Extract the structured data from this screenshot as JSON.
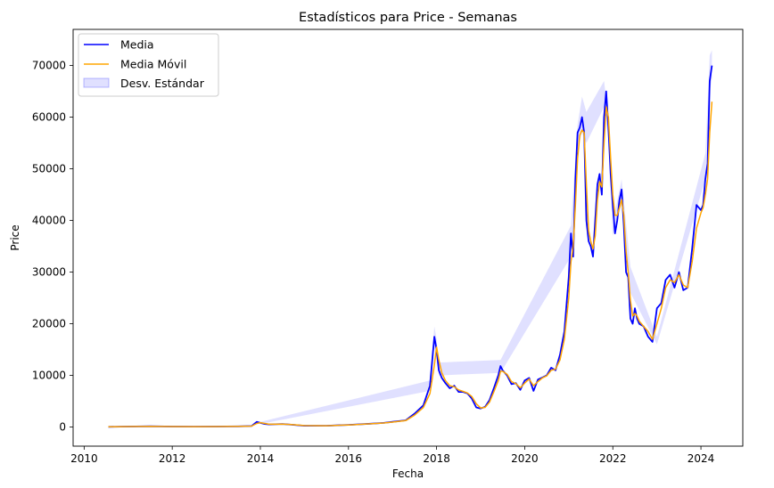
{
  "chart_data": {
    "type": "line",
    "title": "Estadísticos para Price - Semanas",
    "xlabel": "Fecha",
    "ylabel": "Price",
    "xlim": [
      2009.75,
      2024.95
    ],
    "ylim": [
      -3700,
      77000
    ],
    "xticks": [
      2010,
      2012,
      2014,
      2016,
      2018,
      2020,
      2022,
      2024
    ],
    "xtick_labels": [
      "2010",
      "2012",
      "2014",
      "2016",
      "2018",
      "2020",
      "2022",
      "2024"
    ],
    "yticks": [
      0,
      10000,
      20000,
      30000,
      40000,
      50000,
      60000,
      70000
    ],
    "ytick_labels": [
      "0",
      "10000",
      "20000",
      "30000",
      "40000",
      "50000",
      "60000",
      "70000"
    ],
    "legend_position": "top-left",
    "grid": false,
    "legend": [
      {
        "label": "Media",
        "kind": "line",
        "color": "#0000ff"
      },
      {
        "label": "Media Móvil",
        "kind": "line",
        "color": "#ffa500"
      },
      {
        "label": "Desv. Estándar",
        "kind": "band",
        "color": "#0000ff"
      }
    ],
    "series": [
      {
        "name": "Media",
        "color": "#0000ff",
        "x": [
          2010.55,
          2011.0,
          2011.5,
          2012.0,
          2012.5,
          2013.0,
          2013.5,
          2013.8,
          2013.92,
          2014.0,
          2014.1,
          2014.2,
          2014.35,
          2014.5,
          2014.7,
          2015.0,
          2015.5,
          2016.0,
          2016.5,
          2016.8,
          2017.0,
          2017.3,
          2017.5,
          2017.7,
          2017.85,
          2017.95,
          2018.0,
          2018.05,
          2018.12,
          2018.2,
          2018.3,
          2018.4,
          2018.5,
          2018.6,
          2018.7,
          2018.8,
          2018.9,
          2019.0,
          2019.1,
          2019.2,
          2019.3,
          2019.4,
          2019.45,
          2019.5,
          2019.6,
          2019.7,
          2019.8,
          2019.9,
          2020.0,
          2020.1,
          2020.2,
          2020.3,
          2020.4,
          2020.5,
          2020.6,
          2020.7,
          2020.8,
          2020.9,
          2021.0,
          2021.05,
          2021.1,
          2021.15,
          2021.2,
          2021.25,
          2021.3,
          2021.35,
          2021.4,
          2021.45,
          2021.5,
          2021.55,
          2021.6,
          2021.65,
          2021.7,
          2021.75,
          2021.8,
          2021.85,
          2021.9,
          2021.95,
          2022.0,
          2022.05,
          2022.1,
          2022.15,
          2022.2,
          2022.25,
          2022.3,
          2022.35,
          2022.4,
          2022.45,
          2022.5,
          2022.55,
          2022.6,
          2022.7,
          2022.8,
          2022.9,
          2023.0,
          2023.1,
          2023.2,
          2023.3,
          2023.4,
          2023.5,
          2023.6,
          2023.7,
          2023.8,
          2023.9,
          2024.0,
          2024.05,
          2024.1,
          2024.15,
          2024.2,
          2024.25
        ],
        "y": [
          50,
          100,
          150,
          100,
          80,
          100,
          120,
          200,
          1000,
          800,
          600,
          500,
          550,
          600,
          450,
          250,
          250,
          420,
          650,
          800,
          1000,
          1300,
          2600,
          4200,
          8000,
          17500,
          15000,
          11000,
          9500,
          8500,
          7500,
          8000,
          6800,
          6800,
          6500,
          5500,
          3800,
          3600,
          3900,
          5200,
          7500,
          10000,
          11800,
          11000,
          10000,
          8300,
          8500,
          7200,
          9000,
          9500,
          7000,
          9200,
          9600,
          10000,
          11500,
          11000,
          14000,
          18500,
          29000,
          37500,
          33000,
          48000,
          57000,
          58000,
          60000,
          57000,
          40000,
          36000,
          35000,
          33000,
          40000,
          47000,
          49000,
          45000,
          60000,
          65000,
          58000,
          49000,
          43000,
          37500,
          40000,
          44000,
          46000,
          39000,
          30000,
          29000,
          21000,
          20000,
          23000,
          21000,
          20000,
          19500,
          17500,
          16500,
          23000,
          24000,
          28500,
          29500,
          27000,
          30000,
          26500,
          27000,
          34500,
          43000,
          42000,
          43000,
          48000,
          51000,
          67000,
          70000
        ]
      },
      {
        "name": "Media Móvil",
        "color": "#ffa500",
        "x": [
          2010.55,
          2011.0,
          2011.5,
          2012.0,
          2012.5,
          2013.0,
          2013.5,
          2013.8,
          2013.92,
          2014.0,
          2014.1,
          2014.2,
          2014.35,
          2014.5,
          2014.7,
          2015.0,
          2015.5,
          2016.0,
          2016.5,
          2016.8,
          2017.0,
          2017.3,
          2017.5,
          2017.7,
          2017.85,
          2017.95,
          2018.0,
          2018.05,
          2018.12,
          2018.2,
          2018.3,
          2018.4,
          2018.5,
          2018.6,
          2018.7,
          2018.8,
          2018.9,
          2019.0,
          2019.1,
          2019.2,
          2019.3,
          2019.4,
          2019.45,
          2019.5,
          2019.6,
          2019.7,
          2019.8,
          2019.9,
          2020.0,
          2020.1,
          2020.2,
          2020.3,
          2020.4,
          2020.5,
          2020.6,
          2020.7,
          2020.8,
          2020.9,
          2021.0,
          2021.05,
          2021.1,
          2021.15,
          2021.2,
          2021.25,
          2021.3,
          2021.35,
          2021.4,
          2021.45,
          2021.5,
          2021.55,
          2021.6,
          2021.65,
          2021.7,
          2021.75,
          2021.8,
          2021.85,
          2021.9,
          2021.95,
          2022.0,
          2022.05,
          2022.1,
          2022.15,
          2022.2,
          2022.25,
          2022.3,
          2022.35,
          2022.4,
          2022.45,
          2022.5,
          2022.55,
          2022.6,
          2022.7,
          2022.8,
          2022.9,
          2023.0,
          2023.1,
          2023.2,
          2023.3,
          2023.4,
          2023.5,
          2023.6,
          2023.7,
          2023.8,
          2023.9,
          2024.0,
          2024.05,
          2024.1,
          2024.15,
          2024.2,
          2024.25
        ],
        "y": [
          50,
          100,
          150,
          100,
          80,
          100,
          120,
          180,
          700,
          850,
          700,
          550,
          550,
          580,
          480,
          280,
          250,
          400,
          620,
          780,
          950,
          1250,
          2300,
          3800,
          6500,
          12000,
          15500,
          13000,
          10500,
          9000,
          8000,
          7800,
          7200,
          6900,
          6600,
          5900,
          4500,
          3700,
          3800,
          4800,
          6800,
          9000,
          10800,
          10800,
          10200,
          8800,
          8400,
          7600,
          8500,
          9300,
          8000,
          8800,
          9500,
          9900,
          11000,
          11200,
          13000,
          17000,
          25000,
          32000,
          35000,
          43000,
          52000,
          56500,
          57500,
          57000,
          47000,
          38000,
          36000,
          34500,
          37000,
          44000,
          47500,
          46500,
          55000,
          62000,
          60000,
          52000,
          45000,
          41000,
          41000,
          42500,
          44000,
          41000,
          34000,
          30000,
          24500,
          21500,
          22000,
          21500,
          20500,
          19500,
          18500,
          17000,
          20000,
          23000,
          27000,
          28500,
          28000,
          29500,
          27500,
          27000,
          32000,
          38500,
          41500,
          42500,
          45000,
          48000,
          57000,
          63000
        ]
      }
    ],
    "bands": [
      {
        "name": "Desv. Estándar",
        "color": "#0000ff",
        "opacity": 0.12,
        "x": [
          2013.85,
          2013.92,
          2014.0,
          2017.85,
          2017.95,
          2018.0,
          2018.05,
          2019.45,
          2021.05,
          2021.2,
          2021.3,
          2021.4,
          2021.8,
          2021.9,
          2022.0,
          2022.2,
          2022.4,
          2023.0,
          2024.1,
          2024.2,
          2024.25
        ],
        "lower": [
          400,
          700,
          600,
          7000,
          15500,
          13500,
          10000,
          10500,
          33000,
          54000,
          57000,
          55000,
          62000,
          56000,
          37000,
          43000,
          26000,
          16000,
          48000,
          65000,
          67500
        ],
        "upper": [
          600,
          1150,
          1000,
          9000,
          19500,
          17000,
          12500,
          13000,
          39000,
          58500,
          64000,
          61000,
          67000,
          60000,
          39500,
          48000,
          31000,
          17500,
          53000,
          72000,
          73000
        ]
      }
    ]
  }
}
